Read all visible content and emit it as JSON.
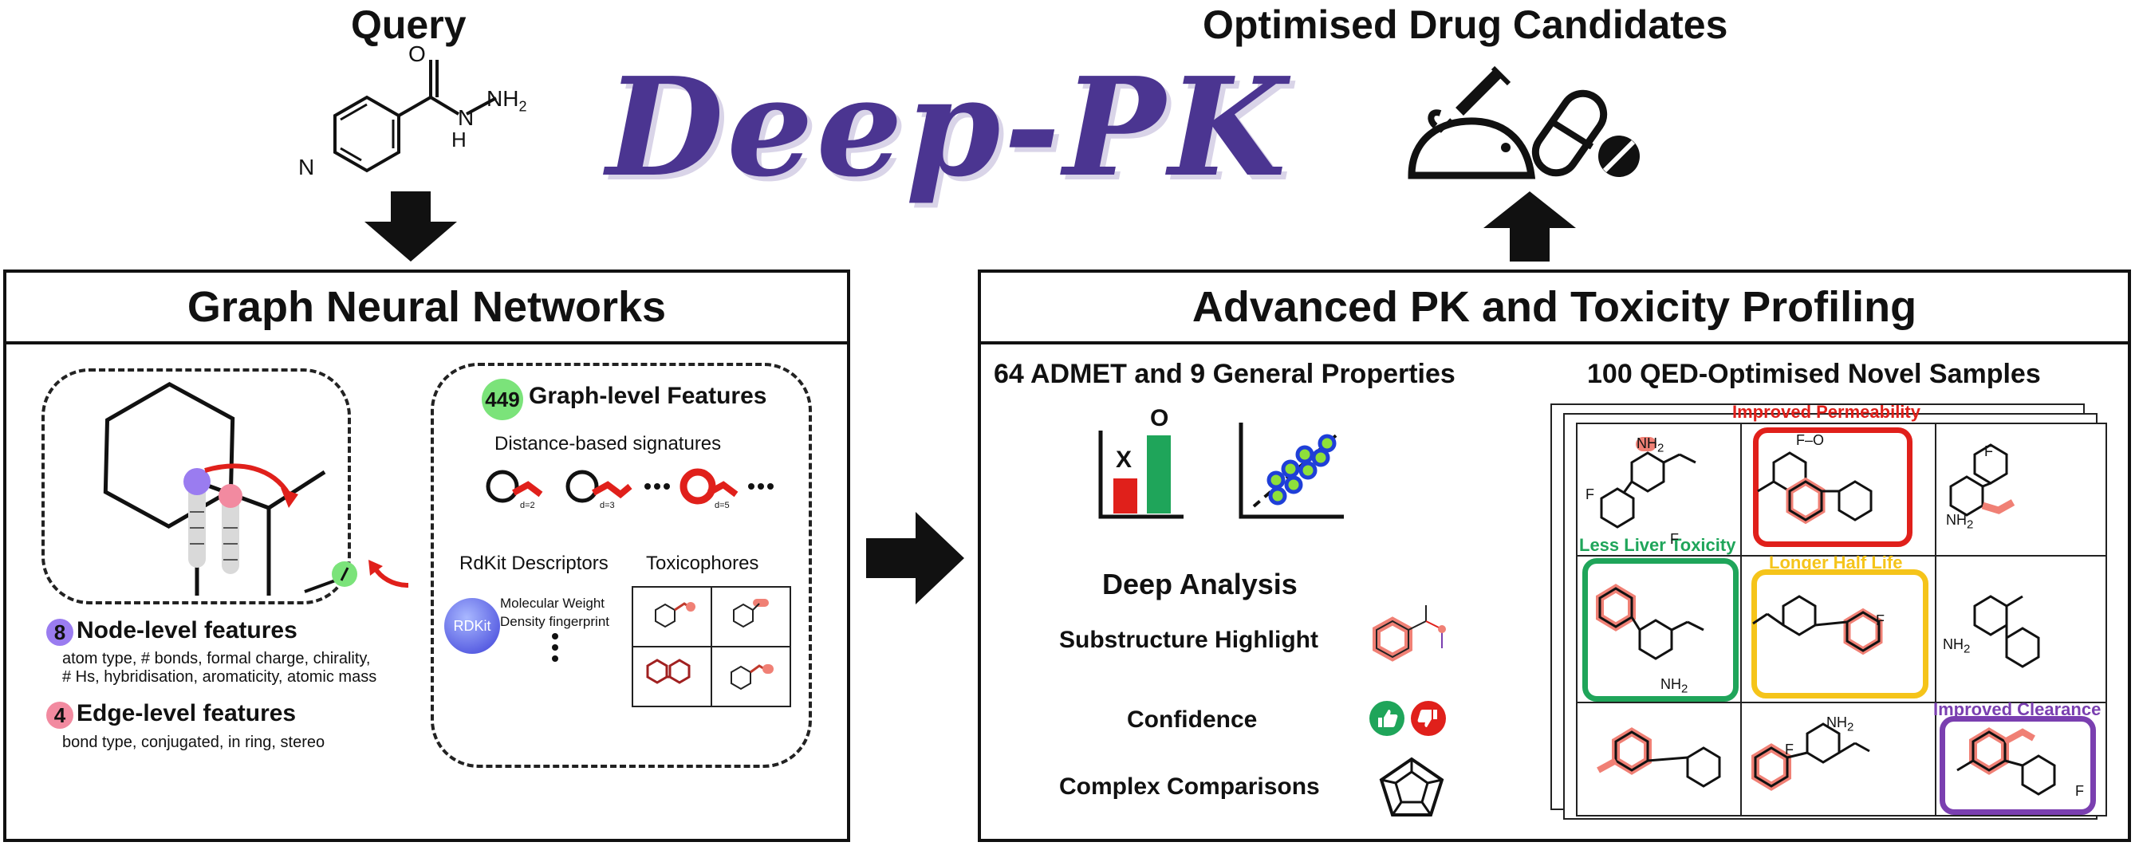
{
  "query": {
    "title": "Query"
  },
  "logo": {
    "text": "Deep-PK"
  },
  "output": {
    "title": "Optimised Drug Candidates"
  },
  "molecule_labels": {
    "o": "O",
    "n": "N",
    "h": "H",
    "nh2": "NH",
    "sub2": "2",
    "f": "F",
    "o_short": "F–O"
  },
  "gnn": {
    "title": "Graph Neural Networks",
    "graph_level": {
      "count": "449",
      "label": "Graph-level Features"
    },
    "distance_signatures": "Distance-based signatures",
    "d_labels": [
      "d=2",
      "d=3",
      "d=5"
    ],
    "rdkit_descriptors": "RdKit Descriptors",
    "toxicophores": "Toxicophores",
    "rdkit_logo": "RDKit",
    "rdkit_items": [
      "Molecular Weight",
      "Density fingerprint"
    ],
    "node": {
      "count": "8",
      "label": "Node-level features",
      "desc1": "atom type, # bonds, formal charge, chirality,",
      "desc2": "# Hs, hybridisation, aromaticity, atomic mass"
    },
    "edge": {
      "count": "4",
      "label": "Edge-level features",
      "desc": "bond type, conjugated, in ring, stereo"
    }
  },
  "pk": {
    "title": "Advanced PK and Toxicity Profiling",
    "admet": "64 ADMET and 9 General Properties",
    "bar_labels": {
      "x": "X",
      "o": "O"
    },
    "deep_analysis": "Deep Analysis",
    "substructure": "Substructure Highlight",
    "confidence": "Confidence",
    "comparisons": "Complex Comparisons",
    "samples": "100 QED-Optimised Novel Samples",
    "improved_permeability": "Improved Permeability",
    "less_liver_toxicity": "Less Liver Toxicity",
    "longer_half_life": "Longer Half Life",
    "improved_clearance": "Improved Clearance"
  },
  "colors": {
    "logo": "#4b3591",
    "red": "#e0201b",
    "green": "#1fa55a",
    "yellow": "#f5c41a",
    "purple": "#7a3fb0",
    "highlight": "#f08075",
    "graph_badge": "#7be37a",
    "node_badge": "#9a7cf0",
    "edge_badge": "#f28aa0"
  }
}
